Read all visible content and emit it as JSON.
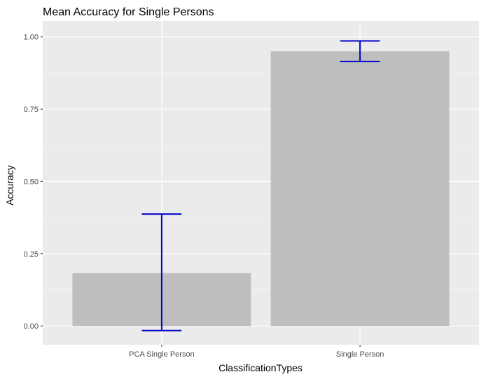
{
  "chart_data": {
    "type": "bar",
    "title": "Mean Accuracy for Single Persons",
    "xlabel": "ClassificationTypes",
    "ylabel": "Accuracy",
    "categories": [
      "PCA Single Person",
      "Single Person"
    ],
    "values": [
      0.183,
      0.95
    ],
    "error_bars": [
      {
        "low": -0.016,
        "high": 0.387
      },
      {
        "low": 0.915,
        "high": 0.986
      }
    ],
    "ylim": [
      -0.065,
      1.055
    ],
    "yticks": [
      0.0,
      0.25,
      0.5,
      0.75,
      1.0
    ],
    "ytick_labels": [
      "0.00",
      "0.25",
      "0.50",
      "0.75",
      "1.00"
    ],
    "grid": true,
    "legend": "none",
    "colors": {
      "panel_bg": "#ebebeb",
      "grid_major": "#ffffff",
      "bar_fill": "#bebebe",
      "error_bar": "#0000cd"
    }
  }
}
